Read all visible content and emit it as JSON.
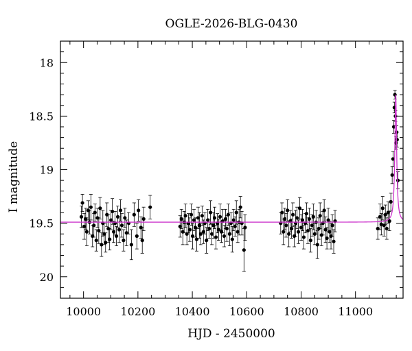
{
  "chart_data": {
    "type": "scatter",
    "title": "OGLE-2026-BLG-0430",
    "xlabel": "HJD - 2450000",
    "ylabel": "I magnitude",
    "xlim": [
      9915,
      11175
    ],
    "ylim": [
      20.2,
      17.8
    ],
    "y_inverted": true,
    "x_ticks": [
      10000,
      10200,
      10400,
      10600,
      10800,
      11000
    ],
    "y_ticks": [
      18,
      18.5,
      19,
      19.5,
      20
    ],
    "grid": false,
    "colors": {
      "data": "#000000",
      "model": "#cc33cc"
    },
    "model": {
      "baseline": 19.49,
      "peak_time": 11148,
      "peak_mag": 18.3,
      "width": 4,
      "series_name": ""
    },
    "series": [
      {
        "name": "",
        "points": [
          {
            "x": 9992,
            "y": 19.44,
            "err": 0.1
          },
          {
            "x": 9996,
            "y": 19.31,
            "err": 0.08
          },
          {
            "x": 10002,
            "y": 19.53,
            "err": 0.12
          },
          {
            "x": 10008,
            "y": 19.46,
            "err": 0.1
          },
          {
            "x": 10012,
            "y": 19.58,
            "err": 0.13
          },
          {
            "x": 10017,
            "y": 19.38,
            "err": 0.09
          },
          {
            "x": 10022,
            "y": 19.49,
            "err": 0.11
          },
          {
            "x": 10027,
            "y": 19.35,
            "err": 0.12
          },
          {
            "x": 10033,
            "y": 19.62,
            "err": 0.1
          },
          {
            "x": 10038,
            "y": 19.52,
            "err": 0.11
          },
          {
            "x": 10042,
            "y": 19.4,
            "err": 0.08
          },
          {
            "x": 10047,
            "y": 19.66,
            "err": 0.1
          },
          {
            "x": 10051,
            "y": 19.45,
            "err": 0.09
          },
          {
            "x": 10056,
            "y": 19.57,
            "err": 0.12
          },
          {
            "x": 10061,
            "y": 19.36,
            "err": 0.1
          },
          {
            "x": 10066,
            "y": 19.7,
            "err": 0.11
          },
          {
            "x": 10071,
            "y": 19.5,
            "err": 0.12
          },
          {
            "x": 10076,
            "y": 19.6,
            "err": 0.1
          },
          {
            "x": 10081,
            "y": 19.68,
            "err": 0.09
          },
          {
            "x": 10086,
            "y": 19.42,
            "err": 0.11
          },
          {
            "x": 10091,
            "y": 19.55,
            "err": 0.13
          },
          {
            "x": 10096,
            "y": 19.65,
            "err": 0.1
          },
          {
            "x": 10101,
            "y": 19.47,
            "err": 0.09
          },
          {
            "x": 10106,
            "y": 19.39,
            "err": 0.12
          },
          {
            "x": 10111,
            "y": 19.58,
            "err": 0.1
          },
          {
            "x": 10116,
            "y": 19.5,
            "err": 0.11
          },
          {
            "x": 10121,
            "y": 19.62,
            "err": 0.09
          },
          {
            "x": 10126,
            "y": 19.44,
            "err": 0.1
          },
          {
            "x": 10131,
            "y": 19.56,
            "err": 0.12
          },
          {
            "x": 10136,
            "y": 19.38,
            "err": 0.1
          },
          {
            "x": 10141,
            "y": 19.52,
            "err": 0.11
          },
          {
            "x": 10147,
            "y": 19.66,
            "err": 0.1
          },
          {
            "x": 10152,
            "y": 19.45,
            "err": 0.09
          },
          {
            "x": 10158,
            "y": 19.59,
            "err": 0.12
          },
          {
            "x": 10166,
            "y": 19.5,
            "err": 0.1
          },
          {
            "x": 10176,
            "y": 19.7,
            "err": 0.14
          },
          {
            "x": 10186,
            "y": 19.42,
            "err": 0.11
          },
          {
            "x": 10196,
            "y": 19.62,
            "err": 0.12
          },
          {
            "x": 10202,
            "y": 19.38,
            "err": 0.1
          },
          {
            "x": 10211,
            "y": 19.54,
            "err": 0.1
          },
          {
            "x": 10216,
            "y": 19.66,
            "err": 0.12
          },
          {
            "x": 10221,
            "y": 19.46,
            "err": 0.11
          },
          {
            "x": 10245,
            "y": 19.35,
            "err": 0.11
          },
          {
            "x": 10355,
            "y": 19.53,
            "err": 0.1
          },
          {
            "x": 10360,
            "y": 19.46,
            "err": 0.09
          },
          {
            "x": 10365,
            "y": 19.58,
            "err": 0.12
          },
          {
            "x": 10370,
            "y": 19.49,
            "err": 0.1
          },
          {
            "x": 10375,
            "y": 19.43,
            "err": 0.11
          },
          {
            "x": 10380,
            "y": 19.6,
            "err": 0.1
          },
          {
            "x": 10386,
            "y": 19.5,
            "err": 0.09
          },
          {
            "x": 10391,
            "y": 19.56,
            "err": 0.11
          },
          {
            "x": 10396,
            "y": 19.42,
            "err": 0.1
          },
          {
            "x": 10401,
            "y": 19.62,
            "err": 0.12
          },
          {
            "x": 10406,
            "y": 19.47,
            "err": 0.1
          },
          {
            "x": 10411,
            "y": 19.54,
            "err": 0.09
          },
          {
            "x": 10416,
            "y": 19.65,
            "err": 0.11
          },
          {
            "x": 10421,
            "y": 19.45,
            "err": 0.1
          },
          {
            "x": 10426,
            "y": 19.52,
            "err": 0.12
          },
          {
            "x": 10431,
            "y": 19.6,
            "err": 0.1
          },
          {
            "x": 10436,
            "y": 19.43,
            "err": 0.09
          },
          {
            "x": 10441,
            "y": 19.58,
            "err": 0.11
          },
          {
            "x": 10446,
            "y": 19.5,
            "err": 0.1
          },
          {
            "x": 10452,
            "y": 19.66,
            "err": 0.12
          },
          {
            "x": 10457,
            "y": 19.47,
            "err": 0.1
          },
          {
            "x": 10462,
            "y": 19.55,
            "err": 0.09
          },
          {
            "x": 10467,
            "y": 19.4,
            "err": 0.11
          },
          {
            "x": 10472,
            "y": 19.6,
            "err": 0.1
          },
          {
            "x": 10477,
            "y": 19.52,
            "err": 0.12
          },
          {
            "x": 10482,
            "y": 19.45,
            "err": 0.1
          },
          {
            "x": 10487,
            "y": 19.63,
            "err": 0.11
          },
          {
            "x": 10492,
            "y": 19.5,
            "err": 0.09
          },
          {
            "x": 10497,
            "y": 19.56,
            "err": 0.1
          },
          {
            "x": 10502,
            "y": 19.44,
            "err": 0.12
          },
          {
            "x": 10507,
            "y": 19.58,
            "err": 0.1
          },
          {
            "x": 10512,
            "y": 19.48,
            "err": 0.11
          },
          {
            "x": 10517,
            "y": 19.62,
            "err": 0.1
          },
          {
            "x": 10522,
            "y": 19.46,
            "err": 0.09
          },
          {
            "x": 10527,
            "y": 19.55,
            "err": 0.12
          },
          {
            "x": 10532,
            "y": 19.42,
            "err": 0.1
          },
          {
            "x": 10537,
            "y": 19.6,
            "err": 0.11
          },
          {
            "x": 10542,
            "y": 19.5,
            "err": 0.1
          },
          {
            "x": 10547,
            "y": 19.65,
            "err": 0.12
          },
          {
            "x": 10552,
            "y": 19.47,
            "err": 0.1
          },
          {
            "x": 10557,
            "y": 19.53,
            "err": 0.09
          },
          {
            "x": 10562,
            "y": 19.4,
            "err": 0.11
          },
          {
            "x": 10567,
            "y": 19.58,
            "err": 0.1
          },
          {
            "x": 10572,
            "y": 19.49,
            "err": 0.12
          },
          {
            "x": 10577,
            "y": 19.35,
            "err": 0.1
          },
          {
            "x": 10582,
            "y": 19.5,
            "err": 0.11
          },
          {
            "x": 10590,
            "y": 19.75,
            "err": 0.2
          },
          {
            "x": 10594,
            "y": 19.54,
            "err": 0.12
          },
          {
            "x": 10725,
            "y": 19.5,
            "err": 0.1
          },
          {
            "x": 10730,
            "y": 19.4,
            "err": 0.09
          },
          {
            "x": 10735,
            "y": 19.58,
            "err": 0.12
          },
          {
            "x": 10740,
            "y": 19.46,
            "err": 0.1
          },
          {
            "x": 10745,
            "y": 19.52,
            "err": 0.11
          },
          {
            "x": 10750,
            "y": 19.38,
            "err": 0.1
          },
          {
            "x": 10755,
            "y": 19.6,
            "err": 0.12
          },
          {
            "x": 10760,
            "y": 19.48,
            "err": 0.1
          },
          {
            "x": 10765,
            "y": 19.55,
            "err": 0.09
          },
          {
            "x": 10770,
            "y": 19.42,
            "err": 0.11
          },
          {
            "x": 10775,
            "y": 19.62,
            "err": 0.1
          },
          {
            "x": 10780,
            "y": 19.5,
            "err": 0.12
          },
          {
            "x": 10785,
            "y": 19.45,
            "err": 0.1
          },
          {
            "x": 10790,
            "y": 19.58,
            "err": 0.11
          },
          {
            "x": 10795,
            "y": 19.36,
            "err": 0.1
          },
          {
            "x": 10800,
            "y": 19.54,
            "err": 0.12
          },
          {
            "x": 10805,
            "y": 19.47,
            "err": 0.1
          },
          {
            "x": 10810,
            "y": 19.63,
            "err": 0.11
          },
          {
            "x": 10815,
            "y": 19.5,
            "err": 0.09
          },
          {
            "x": 10820,
            "y": 19.41,
            "err": 0.1
          },
          {
            "x": 10825,
            "y": 19.57,
            "err": 0.12
          },
          {
            "x": 10830,
            "y": 19.46,
            "err": 0.1
          },
          {
            "x": 10835,
            "y": 19.66,
            "err": 0.11
          },
          {
            "x": 10840,
            "y": 19.52,
            "err": 0.1
          },
          {
            "x": 10845,
            "y": 19.44,
            "err": 0.12
          },
          {
            "x": 10850,
            "y": 19.6,
            "err": 0.1
          },
          {
            "x": 10855,
            "y": 19.49,
            "err": 0.11
          },
          {
            "x": 10860,
            "y": 19.7,
            "err": 0.13
          },
          {
            "x": 10865,
            "y": 19.55,
            "err": 0.1
          },
          {
            "x": 10870,
            "y": 19.43,
            "err": 0.12
          },
          {
            "x": 10875,
            "y": 19.61,
            "err": 0.1
          },
          {
            "x": 10880,
            "y": 19.5,
            "err": 0.11
          },
          {
            "x": 10885,
            "y": 19.38,
            "err": 0.1
          },
          {
            "x": 10890,
            "y": 19.56,
            "err": 0.12
          },
          {
            "x": 10895,
            "y": 19.64,
            "err": 0.1
          },
          {
            "x": 10900,
            "y": 19.47,
            "err": 0.11
          },
          {
            "x": 10905,
            "y": 19.58,
            "err": 0.1
          },
          {
            "x": 10910,
            "y": 19.62,
            "err": 0.12
          },
          {
            "x": 10915,
            "y": 19.52,
            "err": 0.1
          },
          {
            "x": 10920,
            "y": 19.67,
            "err": 0.11
          },
          {
            "x": 10925,
            "y": 19.48,
            "err": 0.1
          },
          {
            "x": 11082,
            "y": 19.55,
            "err": 0.1
          },
          {
            "x": 11090,
            "y": 19.44,
            "err": 0.12
          },
          {
            "x": 11095,
            "y": 19.51,
            "err": 0.1
          },
          {
            "x": 11100,
            "y": 19.36,
            "err": 0.11
          },
          {
            "x": 11105,
            "y": 19.52,
            "err": 0.1
          },
          {
            "x": 11110,
            "y": 19.42,
            "err": 0.09
          },
          {
            "x": 11115,
            "y": 19.55,
            "err": 0.1
          },
          {
            "x": 11120,
            "y": 19.4,
            "err": 0.1
          },
          {
            "x": 11125,
            "y": 19.48,
            "err": 0.09
          },
          {
            "x": 11130,
            "y": 19.3,
            "err": 0.08
          },
          {
            "x": 11135,
            "y": 19.05,
            "err": 0.08
          },
          {
            "x": 11138,
            "y": 18.9,
            "err": 0.07
          },
          {
            "x": 11141,
            "y": 18.6,
            "err": 0.06
          },
          {
            "x": 11143,
            "y": 18.42,
            "err": 0.05
          },
          {
            "x": 11145,
            "y": 18.3,
            "err": 0.04
          },
          {
            "x": 11147,
            "y": 18.5,
            "err": 0.05
          },
          {
            "x": 11149,
            "y": 18.75,
            "err": 0.06
          },
          {
            "x": 11151,
            "y": 18.65,
            "err": 0.06
          },
          {
            "x": 11153,
            "y": 18.72,
            "err": 0.07
          },
          {
            "x": 11156,
            "y": 19.1,
            "err": 0.08
          }
        ]
      }
    ]
  }
}
